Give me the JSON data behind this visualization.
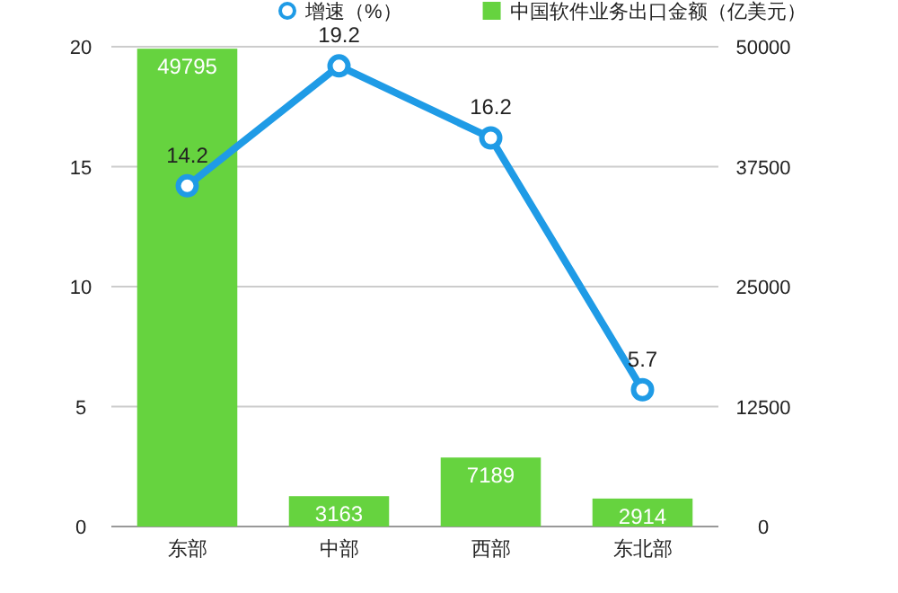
{
  "chart_data": {
    "type": "bar",
    "categories": [
      "东部",
      "中部",
      "西部",
      "东北部"
    ],
    "series": [
      {
        "name": "增速（%）",
        "type": "line",
        "color": "#1f9be6",
        "values": [
          14.2,
          19.2,
          16.2,
          5.7
        ],
        "axis": "y",
        "marker": "circle"
      },
      {
        "name": "中国软件业务出口金额（亿美元）",
        "color": "#66d33f",
        "values": [
          49795,
          3163,
          7189,
          2914
        ],
        "axis": "y2"
      }
    ],
    "ylim": [
      0,
      20
    ],
    "yticks": [
      0,
      5,
      10,
      15,
      20
    ],
    "y2lim": [
      0,
      50000
    ],
    "y2ticks": [
      0,
      12500,
      25000,
      37500,
      50000
    ],
    "grid": "y",
    "legend": "top",
    "data_labels": true
  }
}
